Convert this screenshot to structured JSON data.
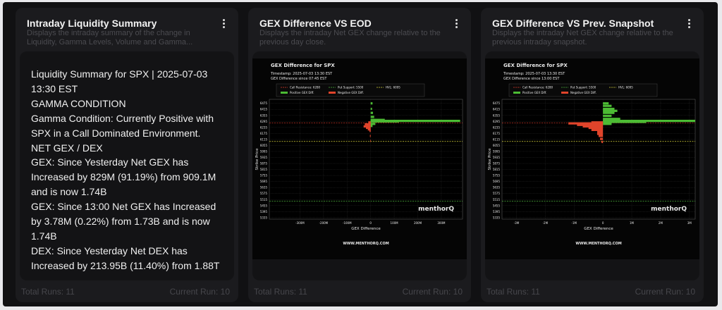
{
  "cards": [
    {
      "title": "Intraday Liquidity Summary",
      "description": "Displays the intraday summary of the change in Liquidity, Gamma Levels, Volume and Gamma...",
      "summary": [
        "Liquidity Summary for SPX | 2025-07-03",
        "13:30 EST",
        "GAMMA CONDITION",
        "Gamma Condition: Currently Positive with",
        "SPX in a Call Dominated Environment.",
        "NET GEX / DEX",
        "GEX: Since Yesterday Net GEX has",
        "Increased by 829M (91.19%) from 909.1M",
        "and is now 1.74B",
        "GEX: Since 13:00 Net GEX has Increased",
        "by 3.78M (0.22%) from 1.73B and is now",
        "1.74B",
        "DEX: Since Yesterday Net DEX has",
        "Increased by 213.95B (11.40%) from 1.88T"
      ],
      "total_runs": "Total Runs: 11",
      "current_run": "Current Run: 10"
    },
    {
      "title": "GEX Difference VS EOD",
      "description": "Displays the intraday Net GEX change relative to the previous day close.",
      "total_runs": "Total Runs: 11",
      "current_run": "Current Run: 10"
    },
    {
      "title": "GEX Difference VS Prev. Snapshot",
      "description": "Displays the intraday Net GEX change relative to the previous intraday snapshot.",
      "total_runs": "Total Runs: 11",
      "current_run": "Current Run: 10"
    }
  ],
  "chart_data": [
    {
      "type": "bar",
      "title": "GEX Difference for SPX",
      "subtitle": [
        "Timestamp: 2025-07-03 13:30 EST",
        "GEX Difference since 07:45 EST"
      ],
      "xlabel": "GEX Difference",
      "ylabel": "Strike Price",
      "levels": [
        {
          "name": "Call Resistance: 6280",
          "value": 6280,
          "color": "#e03a2a"
        },
        {
          "name": "Put Support: 5500",
          "value": 5500,
          "color": "#4caf3a"
        },
        {
          "name": "HVL: 6095",
          "value": 6095,
          "color": "#d6d23a"
        }
      ],
      "series": [
        {
          "name": "Positive GEX Diff.",
          "color": "#4cbb34",
          "y": [
            6475,
            6420,
            6380,
            6340,
            6310,
            6300,
            6295,
            6270,
            6250
          ],
          "values": [
            8000000,
            6000000,
            10000000,
            15000000,
            60000000,
            380000000,
            120000000,
            20000000,
            8000000
          ]
        },
        {
          "name": "Negative GEX Diff.",
          "color": "#e0442b",
          "y": [
            6285,
            6265,
            6245,
            6230,
            6215,
            6200,
            6150,
            6100
          ],
          "values": [
            -10000000,
            -25000000,
            -30000000,
            -20000000,
            -12000000,
            -5000000,
            -3000000,
            -2000000
          ]
        }
      ],
      "xlim": [
        -430000000,
        390000000
      ],
      "xticks": [
        {
          "value": -300000000,
          "label": "-300M"
        },
        {
          "value": -200000000,
          "label": "-200M"
        },
        {
          "value": -100000000,
          "label": "-100M"
        },
        0,
        {
          "value": 100000000,
          "label": "100M"
        },
        {
          "value": 200000000,
          "label": "200M"
        },
        {
          "value": 300000000,
          "label": "300M"
        }
      ],
      "ylim": [
        5320,
        6515
      ],
      "yticks": [
        6475,
        6415,
        6355,
        6295,
        6235,
        6175,
        6115,
        6055,
        5995,
        5935,
        5875,
        5815,
        5755,
        5695,
        5635,
        5575,
        5515,
        5455,
        5395,
        5335
      ],
      "grid": true,
      "watermark": "menthorQ",
      "footer": "WWW.MENTHORQ.COM"
    },
    {
      "type": "bar",
      "title": "GEX Difference for SPX",
      "subtitle": [
        "Timestamp: 2025-07-03 13:30 EST",
        "GEX Difference since 13:00 EST"
      ],
      "xlabel": "GEX Difference",
      "ylabel": "Strike Price",
      "levels": [
        {
          "name": "Call Resistance: 6280",
          "value": 6280,
          "color": "#e03a2a"
        },
        {
          "name": "Put Support: 5500",
          "value": 5500,
          "color": "#4caf3a"
        },
        {
          "name": "HVL: 6095",
          "value": 6095,
          "color": "#d6d23a"
        }
      ],
      "series": [
        {
          "name": "Positive GEX Diff.",
          "color": "#4cbb34",
          "y": [
            6475,
            6450,
            6420,
            6400,
            6380,
            6350,
            6320,
            6300,
            6290,
            6270
          ],
          "values": [
            200000,
            300000,
            400000,
            500000,
            400000,
            300000,
            600000,
            3200000,
            1500000,
            300000
          ]
        },
        {
          "name": "Negative GEX Diff.",
          "color": "#e0442b",
          "y": [
            6285,
            6275,
            6260,
            6245,
            6230,
            6210,
            6190,
            6170,
            6150,
            6120,
            6090
          ],
          "values": [
            -400000,
            -1200000,
            -900000,
            -700000,
            -500000,
            -400000,
            -200000,
            -200000,
            -150000,
            -100000,
            -50000
          ]
        }
      ],
      "xlim": [
        -3500000,
        3200000
      ],
      "xticks": [
        {
          "value": -3000000,
          "label": "-3M"
        },
        {
          "value": -2000000,
          "label": "-2M"
        },
        {
          "value": -1000000,
          "label": "-1M"
        },
        0,
        {
          "value": 1000000,
          "label": "1M"
        },
        {
          "value": 2000000,
          "label": "2M"
        },
        {
          "value": 3000000,
          "label": "3M"
        }
      ],
      "ylim": [
        5320,
        6515
      ],
      "yticks": [
        6475,
        6415,
        6355,
        6295,
        6235,
        6175,
        6115,
        6055,
        5995,
        5935,
        5875,
        5815,
        5755,
        5695,
        5635,
        5575,
        5515,
        5455,
        5395,
        5335
      ],
      "grid": true,
      "watermark": "menthorQ",
      "footer": "WWW.MENTHORQ.COM"
    }
  ]
}
